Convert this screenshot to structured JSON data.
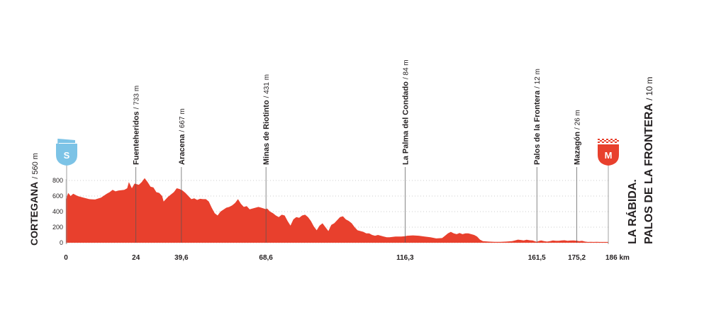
{
  "chart_data": {
    "type": "area",
    "title": "",
    "xlabel": "",
    "ylabel": "",
    "x_unit": "km",
    "xlim": [
      0,
      186
    ],
    "ylim": [
      0,
      800
    ],
    "y_ticks": [
      "0",
      "200",
      "400",
      "600",
      "800"
    ],
    "grid": false,
    "fill_color": "#e8402d",
    "start": {
      "name": "CORTEGANA",
      "altitude": "/ 560 m",
      "badge": "S",
      "badge_color": "#7cc3e6"
    },
    "finish": {
      "name_line1": "LA RÁBIDA.",
      "name_line2": "PALOS DE LA FRONTERA",
      "altitude": "/ 10 m",
      "badge": "M",
      "badge_color": "#e8402d"
    },
    "km_labels": [
      {
        "km": 0,
        "label": "0"
      },
      {
        "km": 24,
        "label": "24"
      },
      {
        "km": 39.6,
        "label": "39,6"
      },
      {
        "km": 68.6,
        "label": "68,6"
      },
      {
        "km": 116.3,
        "label": "116,3"
      },
      {
        "km": 161.5,
        "label": "161,5"
      },
      {
        "km": 175.2,
        "label": "175,2"
      },
      {
        "km": 186,
        "label": "186 km"
      }
    ],
    "waypoints": [
      {
        "km": 24,
        "name": "Fuenteheridos",
        "altitude": "/ 733 m"
      },
      {
        "km": 39.6,
        "name": "Aracena",
        "altitude": "/ 667 m"
      },
      {
        "km": 68.6,
        "name": "Minas de Riotinto",
        "altitude": "/ 431 m"
      },
      {
        "km": 116.3,
        "name": "La Palma del Condado",
        "altitude": "/ 84 m"
      },
      {
        "km": 161.5,
        "name": "Palos de la Frontera",
        "altitude": "/ 12 m"
      },
      {
        "km": 175.2,
        "name": "Mazagón",
        "altitude": "/ 26 m"
      }
    ],
    "profile": [
      [
        0,
        560
      ],
      [
        0.8,
        640
      ],
      [
        1.6,
        600
      ],
      [
        2.5,
        630
      ],
      [
        4,
        600
      ],
      [
        6,
        580
      ],
      [
        8,
        560
      ],
      [
        10,
        555
      ],
      [
        12,
        580
      ],
      [
        14,
        630
      ],
      [
        15,
        650
      ],
      [
        16,
        680
      ],
      [
        17,
        660
      ],
      [
        18,
        670
      ],
      [
        20,
        680
      ],
      [
        21,
        700
      ],
      [
        21.6,
        780
      ],
      [
        22.6,
        700
      ],
      [
        23.5,
        760
      ],
      [
        25,
        745
      ],
      [
        26,
        780
      ],
      [
        27,
        830
      ],
      [
        28,
        780
      ],
      [
        29,
        720
      ],
      [
        30,
        710
      ],
      [
        31,
        650
      ],
      [
        32,
        640
      ],
      [
        33,
        600
      ],
      [
        33.5,
        530
      ],
      [
        35,
        590
      ],
      [
        37,
        650
      ],
      [
        38,
        700
      ],
      [
        39,
        690
      ],
      [
        40,
        670
      ],
      [
        41,
        640
      ],
      [
        42,
        600
      ],
      [
        43,
        560
      ],
      [
        44,
        570
      ],
      [
        45,
        550
      ],
      [
        46,
        565
      ],
      [
        47,
        560
      ],
      [
        48,
        560
      ],
      [
        49,
        530
      ],
      [
        50,
        450
      ],
      [
        51,
        380
      ],
      [
        52,
        350
      ],
      [
        53,
        400
      ],
      [
        55,
        450
      ],
      [
        56,
        460
      ],
      [
        57,
        480
      ],
      [
        58,
        510
      ],
      [
        59,
        560
      ],
      [
        60,
        500
      ],
      [
        61,
        460
      ],
      [
        62,
        470
      ],
      [
        63,
        430
      ],
      [
        64,
        440
      ],
      [
        66,
        460
      ],
      [
        67,
        450
      ],
      [
        68.6,
        431
      ],
      [
        69,
        440
      ],
      [
        70,
        400
      ],
      [
        71,
        380
      ],
      [
        72,
        350
      ],
      [
        73,
        330
      ],
      [
        74,
        360
      ],
      [
        75,
        350
      ],
      [
        76,
        280
      ],
      [
        77,
        220
      ],
      [
        78,
        300
      ],
      [
        79,
        330
      ],
      [
        80,
        320
      ],
      [
        81,
        350
      ],
      [
        82,
        360
      ],
      [
        83,
        330
      ],
      [
        84,
        280
      ],
      [
        85,
        210
      ],
      [
        86,
        160
      ],
      [
        87,
        220
      ],
      [
        88,
        250
      ],
      [
        89,
        200
      ],
      [
        90,
        150
      ],
      [
        91,
        230
      ],
      [
        92,
        250
      ],
      [
        93,
        290
      ],
      [
        94,
        330
      ],
      [
        95,
        340
      ],
      [
        96,
        300
      ],
      [
        97,
        280
      ],
      [
        98,
        250
      ],
      [
        99,
        200
      ],
      [
        100,
        160
      ],
      [
        101,
        150
      ],
      [
        102,
        140
      ],
      [
        103,
        120
      ],
      [
        104,
        120
      ],
      [
        105,
        100
      ],
      [
        106,
        90
      ],
      [
        107,
        100
      ],
      [
        108,
        90
      ],
      [
        109,
        80
      ],
      [
        110,
        70
      ],
      [
        111,
        70
      ],
      [
        112,
        75
      ],
      [
        113,
        80
      ],
      [
        114,
        80
      ],
      [
        115,
        80
      ],
      [
        116.3,
        84
      ],
      [
        117,
        90
      ],
      [
        119,
        95
      ],
      [
        121,
        90
      ],
      [
        123,
        80
      ],
      [
        125,
        70
      ],
      [
        127,
        55
      ],
      [
        129,
        60
      ],
      [
        130,
        90
      ],
      [
        131,
        120
      ],
      [
        132,
        140
      ],
      [
        133,
        120
      ],
      [
        134,
        110
      ],
      [
        135,
        125
      ],
      [
        136,
        110
      ],
      [
        137,
        120
      ],
      [
        138,
        120
      ],
      [
        139,
        110
      ],
      [
        140,
        100
      ],
      [
        141,
        80
      ],
      [
        142,
        40
      ],
      [
        143,
        20
      ],
      [
        145,
        15
      ],
      [
        147,
        12
      ],
      [
        149,
        12
      ],
      [
        151,
        15
      ],
      [
        153,
        20
      ],
      [
        154,
        30
      ],
      [
        155,
        40
      ],
      [
        156,
        35
      ],
      [
        157,
        30
      ],
      [
        158,
        38
      ],
      [
        159,
        32
      ],
      [
        160,
        30
      ],
      [
        161.5,
        12
      ],
      [
        162,
        20
      ],
      [
        163,
        30
      ],
      [
        164,
        20
      ],
      [
        165,
        15
      ],
      [
        166,
        20
      ],
      [
        167,
        30
      ],
      [
        168,
        25
      ],
      [
        169,
        25
      ],
      [
        170,
        30
      ],
      [
        171,
        32
      ],
      [
        172,
        25
      ],
      [
        173,
        28
      ],
      [
        174,
        30
      ],
      [
        175.2,
        26
      ],
      [
        176,
        20
      ],
      [
        177,
        25
      ],
      [
        178,
        15
      ],
      [
        179,
        10
      ],
      [
        180,
        12
      ],
      [
        181,
        10
      ],
      [
        182,
        12
      ],
      [
        183,
        10
      ],
      [
        184,
        10
      ],
      [
        185,
        10
      ],
      [
        186,
        10
      ]
    ]
  }
}
